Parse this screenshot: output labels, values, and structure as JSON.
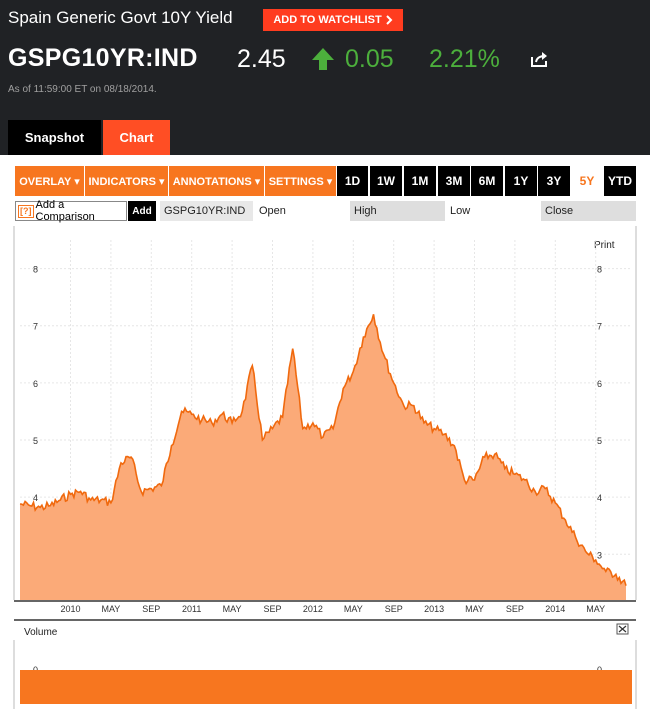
{
  "header": {
    "title": "Spain Generic Govt 10Y Yield",
    "watchlist_label": "ADD TO WATCHLIST",
    "ticker": "GSPG10YR:IND",
    "price": "2.45",
    "change": "0.05",
    "change_pct": "2.21%",
    "as_of_prefix": "As of",
    "as_of_time": "11:59:00 ET",
    "as_of_on": "on",
    "as_of_date": "08/18/2014.",
    "icons": {
      "change_direction": "up-arrow-icon",
      "share": "share-icon"
    }
  },
  "tabs": [
    {
      "label": "Snapshot",
      "active": false
    },
    {
      "label": "Chart",
      "active": true
    }
  ],
  "toolbar": {
    "menus": [
      {
        "label": "OVERLAY ▾"
      },
      {
        "label": "INDICATORS ▾"
      },
      {
        "label": "ANNOTATIONS ▾"
      },
      {
        "label": "SETTINGS ▾"
      }
    ],
    "ranges": [
      {
        "label": "1D",
        "active": false
      },
      {
        "label": "1W",
        "active": false
      },
      {
        "label": "1M",
        "active": false
      },
      {
        "label": "3M",
        "active": false
      },
      {
        "label": "6M",
        "active": false
      },
      {
        "label": "1Y",
        "active": false
      },
      {
        "label": "3Y",
        "active": false
      },
      {
        "label": "5Y",
        "active": true
      },
      {
        "label": "YTD",
        "active": false
      }
    ]
  },
  "legend_row": {
    "compare_icon": "[?]",
    "compare_label": "Add a Comparison",
    "add_label": "Add",
    "symbol": "GSPG10YR:IND",
    "open_label": "Open",
    "high_label": "High",
    "low_label": "Low",
    "close_label": "Close"
  },
  "colors": {
    "accent": "#f7761f",
    "area_fill": "#fbaa78",
    "line": "#f0690e",
    "up": "#4caf3c",
    "header_bg": "#202225"
  },
  "chart_data": {
    "type": "area",
    "print_label": "Print",
    "yticks": [
      "8",
      "7",
      "6",
      "5",
      "4",
      "3"
    ],
    "ylim": [
      2.2,
      8.5
    ],
    "grid": true,
    "xticks": [
      "2010",
      "MAY",
      "SEP",
      "2011",
      "MAY",
      "SEP",
      "2012",
      "MAY",
      "SEP",
      "2013",
      "MAY",
      "SEP",
      "2014",
      "MAY"
    ],
    "x_start": "2009-08",
    "x_end": "2014-08",
    "series": [
      {
        "values": [
          [
            "2009-08",
            3.88
          ],
          [
            "2009-09",
            3.85
          ],
          [
            "2009-10",
            3.82
          ],
          [
            "2009-11",
            3.85
          ],
          [
            "2009-12",
            3.95
          ],
          [
            "2010-01",
            4.05
          ],
          [
            "2010-02",
            4.1
          ],
          [
            "2010-03",
            3.95
          ],
          [
            "2010-04",
            3.95
          ],
          [
            "2010-05",
            3.9
          ],
          [
            "2010-06",
            4.6
          ],
          [
            "2010-07",
            4.7
          ],
          [
            "2010-08",
            4.1
          ],
          [
            "2010-09",
            4.15
          ],
          [
            "2010-10",
            4.2
          ],
          [
            "2010-11",
            4.9
          ],
          [
            "2010-12",
            5.5
          ],
          [
            "2011-01",
            5.45
          ],
          [
            "2011-02",
            5.35
          ],
          [
            "2011-03",
            5.3
          ],
          [
            "2011-04",
            5.45
          ],
          [
            "2011-05",
            5.3
          ],
          [
            "2011-06",
            5.5
          ],
          [
            "2011-07",
            6.3
          ],
          [
            "2011-08",
            5.0
          ],
          [
            "2011-09",
            5.2
          ],
          [
            "2011-10",
            5.4
          ],
          [
            "2011-11",
            6.6
          ],
          [
            "2011-12",
            5.2
          ],
          [
            "2012-01",
            5.3
          ],
          [
            "2012-02",
            5.05
          ],
          [
            "2012-03",
            5.2
          ],
          [
            "2012-04",
            5.9
          ],
          [
            "2012-05",
            6.2
          ],
          [
            "2012-06",
            6.8
          ],
          [
            "2012-07",
            7.2
          ],
          [
            "2012-08",
            6.5
          ],
          [
            "2012-09",
            6.0
          ],
          [
            "2012-10",
            5.6
          ],
          [
            "2012-11",
            5.6
          ],
          [
            "2012-12",
            5.3
          ],
          [
            "2013-01",
            5.2
          ],
          [
            "2013-02",
            5.1
          ],
          [
            "2013-03",
            4.9
          ],
          [
            "2013-04",
            4.3
          ],
          [
            "2013-05",
            4.3
          ],
          [
            "2013-06",
            4.7
          ],
          [
            "2013-07",
            4.75
          ],
          [
            "2013-08",
            4.5
          ],
          [
            "2013-09",
            4.4
          ],
          [
            "2013-10",
            4.3
          ],
          [
            "2013-11",
            4.1
          ],
          [
            "2013-12",
            4.15
          ],
          [
            "2014-01",
            3.9
          ],
          [
            "2014-02",
            3.6
          ],
          [
            "2014-03",
            3.3
          ],
          [
            "2014-04",
            3.05
          ],
          [
            "2014-05",
            2.9
          ],
          [
            "2014-06",
            2.7
          ],
          [
            "2014-07",
            2.65
          ],
          [
            "2014-08",
            2.45
          ]
        ]
      }
    ],
    "volume": {
      "label": "Volume",
      "ytick": "0",
      "values": [
        0
      ]
    }
  }
}
